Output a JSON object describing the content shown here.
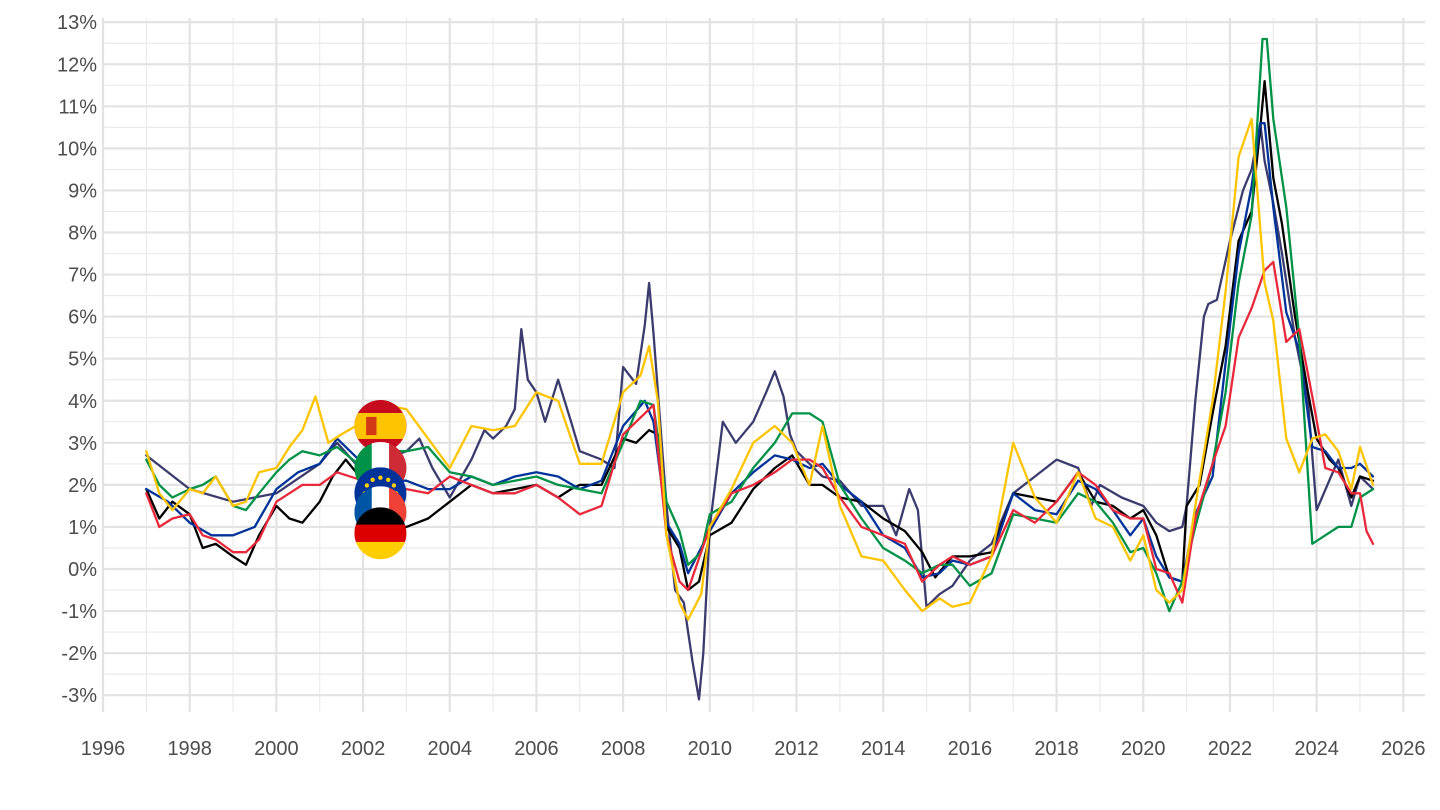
{
  "chart_data": {
    "type": "line",
    "title": "",
    "xlabel": "",
    "ylabel": "",
    "xlim": [
      1996,
      2026.5
    ],
    "ylim": [
      -3.4,
      13.1
    ],
    "x_ticks": [
      1996,
      1998,
      2000,
      2002,
      2004,
      2006,
      2008,
      2010,
      2012,
      2014,
      2016,
      2018,
      2020,
      2022,
      2024,
      2026
    ],
    "x_tick_labels": [
      "1996",
      "1998",
      "2000",
      "2002",
      "2004",
      "2006",
      "2008",
      "2010",
      "2012",
      "2014",
      "2016",
      "2018",
      "2020",
      "2022",
      "2024",
      "2026"
    ],
    "y_ticks": [
      -3,
      -2,
      -1,
      0,
      1,
      2,
      3,
      4,
      5,
      6,
      7,
      8,
      9,
      10,
      11,
      12,
      13
    ],
    "y_tick_labels": [
      "-3%",
      "-2%",
      "-1%",
      "0%",
      "1%",
      "2%",
      "3%",
      "4%",
      "5%",
      "6%",
      "7%",
      "8%",
      "9%",
      "10%",
      "11%",
      "12%",
      "13%"
    ],
    "grid": true,
    "legend": "flag icons stacked near 2002",
    "flag_icons": [
      {
        "icon": "spain-flag-icon",
        "colors": [
          "#c60b1e",
          "#ffc400"
        ]
      },
      {
        "icon": "italy-flag-icon",
        "colors": [
          "#009246",
          "#ffffff",
          "#ce2b37"
        ]
      },
      {
        "icon": "euro-area-flag-icon",
        "colors": [
          "#003399",
          "#ffcc00"
        ]
      },
      {
        "icon": "france-flag-icon",
        "colors": [
          "#0055a4",
          "#ffffff",
          "#ef4135"
        ]
      },
      {
        "icon": "germany-flag-icon",
        "colors": [
          "#000000",
          "#dd0000",
          "#ffce00"
        ]
      }
    ],
    "series": [
      {
        "color": "#3b3b6e",
        "x": [
          1997.0,
          1998.0,
          1999.0,
          2000.0,
          2001.0,
          2001.4,
          2002.0,
          2002.5,
          2003.0,
          2003.3,
          2003.6,
          2004.0,
          2004.5,
          2004.8,
          2005.0,
          2005.3,
          2005.5,
          2005.65,
          2005.8,
          2006.0,
          2006.2,
          2006.5,
          2006.8,
          2007.0,
          2007.5,
          2007.8,
          2008.0,
          2008.3,
          2008.5,
          2008.6,
          2008.7,
          2009.0,
          2009.2,
          2009.4,
          2009.5,
          2009.6,
          2009.75,
          2009.85,
          2010.0,
          2010.3,
          2010.6,
          2011.0,
          2011.3,
          2011.5,
          2011.7,
          2011.85,
          2012.0,
          2012.3,
          2012.6,
          2013.0,
          2013.5,
          2014.0,
          2014.3,
          2014.6,
          2014.8,
          2015.0,
          2015.3,
          2015.6,
          2016.0,
          2016.5,
          2017.0,
          2017.5,
          2018.0,
          2018.5,
          2018.8,
          2019.0,
          2019.5,
          2020.0,
          2020.3,
          2020.6,
          2020.9,
          2021.0,
          2021.2,
          2021.4,
          2021.5,
          2021.7,
          2022.0,
          2022.3,
          2022.5,
          2022.7,
          2022.8,
          2023.0,
          2023.2,
          2023.5,
          2023.8,
          2024.0,
          2024.5,
          2024.8,
          2025.0,
          2025.3
        ],
        "y": [
          2.7,
          1.9,
          1.6,
          1.8,
          2.5,
          3.0,
          2.3,
          2.6,
          2.8,
          3.1,
          2.4,
          1.7,
          2.6,
          3.3,
          3.1,
          3.4,
          3.8,
          5.7,
          4.5,
          4.2,
          3.5,
          4.5,
          3.5,
          2.8,
          2.6,
          2.4,
          4.8,
          4.4,
          5.8,
          6.8,
          5.6,
          1.5,
          -0.5,
          -0.8,
          -1.5,
          -2.2,
          -3.1,
          -2.0,
          1.0,
          3.5,
          3.0,
          3.5,
          4.2,
          4.7,
          4.1,
          3.2,
          2.8,
          2.5,
          2.2,
          2.1,
          1.5,
          1.5,
          0.8,
          1.9,
          1.4,
          -0.9,
          -0.6,
          -0.4,
          0.2,
          0.6,
          1.8,
          2.2,
          2.6,
          2.4,
          1.5,
          2.0,
          1.7,
          1.5,
          1.1,
          0.9,
          1.0,
          1.5,
          4.0,
          6.0,
          6.3,
          6.4,
          7.8,
          9.0,
          9.5,
          10.6,
          9.7,
          8.7,
          7.5,
          5.5,
          4.0,
          1.4,
          2.6,
          1.5,
          2.2,
          1.9
        ]
      },
      {
        "color": "#000000",
        "x": [
          1997.0,
          1997.3,
          1997.6,
          1998.0,
          1998.3,
          1998.6,
          1999.0,
          1999.3,
          1999.6,
          2000.0,
          2000.3,
          2000.6,
          2001.0,
          2001.3,
          2001.6,
          2002.0,
          2002.5,
          2003.0,
          2003.5,
          2004.0,
          2004.5,
          2005.0,
          2005.5,
          2006.0,
          2006.5,
          2006.8,
          2007.0,
          2007.5,
          2008.0,
          2008.3,
          2008.6,
          2008.8,
          2009.0,
          2009.3,
          2009.5,
          2009.75,
          2010.0,
          2010.5,
          2011.0,
          2011.5,
          2011.9,
          2012.3,
          2012.6,
          2013.0,
          2013.5,
          2014.0,
          2014.5,
          2014.9,
          2015.2,
          2015.6,
          2016.0,
          2016.5,
          2017.0,
          2017.5,
          2018.0,
          2018.5,
          2018.9,
          2019.3,
          2019.7,
          2020.0,
          2020.3,
          2020.6,
          2020.9,
          2021.0,
          2021.3,
          2021.6,
          2021.9,
          2022.2,
          2022.5,
          2022.7,
          2022.8,
          2023.0,
          2023.2,
          2023.5,
          2023.8,
          2024.0,
          2024.3,
          2024.5,
          2024.8,
          2025.0,
          2025.3
        ],
        "y": [
          1.9,
          1.2,
          1.6,
          1.3,
          0.5,
          0.6,
          0.3,
          0.1,
          0.8,
          1.5,
          1.2,
          1.1,
          1.6,
          2.2,
          2.6,
          2.1,
          1.0,
          1.0,
          1.2,
          1.6,
          2.0,
          1.8,
          1.9,
          2.0,
          1.7,
          1.9,
          2.0,
          2.0,
          3.1,
          3.0,
          3.3,
          3.2,
          1.0,
          0.5,
          -0.5,
          -0.3,
          0.8,
          1.1,
          1.9,
          2.4,
          2.7,
          2.0,
          2.0,
          1.7,
          1.6,
          1.2,
          0.9,
          0.4,
          -0.2,
          0.3,
          0.3,
          0.4,
          1.8,
          1.7,
          1.6,
          2.3,
          1.6,
          1.5,
          1.2,
          1.4,
          0.8,
          -0.2,
          -0.3,
          1.5,
          2.0,
          3.7,
          5.3,
          7.8,
          8.5,
          10.5,
          11.6,
          9.3,
          8.2,
          6.0,
          4.2,
          3.1,
          2.6,
          2.4,
          1.7,
          2.2,
          2.1
        ]
      },
      {
        "color": "#003399",
        "x": [
          1997.0,
          1997.5,
          1998.0,
          1998.5,
          1999.0,
          1999.5,
          2000.0,
          2000.5,
          2001.0,
          2001.4,
          2002.0,
          2002.5,
          2003.0,
          2003.5,
          2004.0,
          2004.5,
          2005.0,
          2005.5,
          2006.0,
          2006.5,
          2007.0,
          2007.5,
          2008.0,
          2008.5,
          2008.7,
          2009.0,
          2009.3,
          2009.5,
          2010.0,
          2010.5,
          2011.0,
          2011.5,
          2011.9,
          2012.3,
          2012.6,
          2013.0,
          2013.5,
          2014.0,
          2014.5,
          2014.9,
          2015.3,
          2015.6,
          2016.0,
          2016.5,
          2017.0,
          2017.5,
          2018.0,
          2018.5,
          2018.9,
          2019.3,
          2019.7,
          2020.0,
          2020.3,
          2020.6,
          2020.9,
          2021.2,
          2021.6,
          2021.9,
          2022.2,
          2022.5,
          2022.7,
          2022.8,
          2023.0,
          2023.3,
          2023.6,
          2023.9,
          2024.2,
          2024.5,
          2024.8,
          2025.0,
          2025.3
        ],
        "y": [
          1.9,
          1.6,
          1.1,
          0.8,
          0.8,
          1.0,
          1.9,
          2.3,
          2.5,
          3.1,
          2.5,
          2.1,
          2.1,
          1.9,
          1.9,
          2.2,
          2.0,
          2.2,
          2.3,
          2.2,
          1.9,
          2.1,
          3.4,
          4.0,
          3.5,
          1.1,
          0.6,
          -0.1,
          0.9,
          1.8,
          2.3,
          2.7,
          2.6,
          2.4,
          2.5,
          2.0,
          1.6,
          0.8,
          0.5,
          -0.2,
          -0.1,
          0.2,
          0.1,
          0.3,
          1.8,
          1.4,
          1.3,
          2.1,
          1.9,
          1.4,
          0.8,
          1.2,
          0.3,
          -0.2,
          -0.3,
          1.3,
          2.2,
          4.9,
          7.5,
          9.1,
          10.6,
          10.6,
          8.6,
          6.1,
          5.2,
          2.9,
          2.8,
          2.4,
          2.4,
          2.5,
          2.2
        ]
      },
      {
        "color": "#009246",
        "x": [
          1997.0,
          1997.3,
          1997.6,
          1998.0,
          1998.3,
          1998.6,
          1999.0,
          1999.3,
          1999.6,
          2000.0,
          2000.3,
          2000.6,
          2001.0,
          2001.4,
          2002.0,
          2002.5,
          2003.0,
          2003.5,
          2004.0,
          2004.5,
          2005.0,
          2005.5,
          2006.0,
          2006.5,
          2007.0,
          2007.5,
          2008.0,
          2008.4,
          2008.7,
          2009.0,
          2009.3,
          2009.5,
          2009.8,
          2010.0,
          2010.5,
          2011.0,
          2011.5,
          2011.9,
          2012.3,
          2012.6,
          2013.0,
          2013.5,
          2014.0,
          2014.5,
          2014.9,
          2015.3,
          2015.6,
          2016.0,
          2016.5,
          2017.0,
          2017.5,
          2018.0,
          2018.5,
          2018.9,
          2019.3,
          2019.7,
          2020.0,
          2020.3,
          2020.6,
          2020.9,
          2021.2,
          2021.6,
          2021.9,
          2022.2,
          2022.5,
          2022.75,
          2022.85,
          2023.0,
          2023.3,
          2023.6,
          2023.9,
          2024.2,
          2024.5,
          2024.8,
          2025.0,
          2025.3
        ],
        "y": [
          2.6,
          2.0,
          1.7,
          1.9,
          2.0,
          2.2,
          1.5,
          1.4,
          1.8,
          2.3,
          2.6,
          2.8,
          2.7,
          2.9,
          2.4,
          2.8,
          2.8,
          2.9,
          2.3,
          2.2,
          2.0,
          2.1,
          2.2,
          2.0,
          1.9,
          1.8,
          3.0,
          4.0,
          3.9,
          1.6,
          0.9,
          0.1,
          0.4,
          1.3,
          1.6,
          2.4,
          3.0,
          3.7,
          3.7,
          3.5,
          2.0,
          1.2,
          0.5,
          0.2,
          -0.1,
          0.1,
          0.1,
          -0.4,
          -0.1,
          1.3,
          1.2,
          1.1,
          1.8,
          1.6,
          1.1,
          0.4,
          0.5,
          -0.1,
          -1.0,
          -0.3,
          1.0,
          2.5,
          4.2,
          6.8,
          8.4,
          12.6,
          12.6,
          10.7,
          8.6,
          5.5,
          0.6,
          0.8,
          1.0,
          1.0,
          1.7,
          1.9
        ]
      },
      {
        "color": "#e8293b",
        "x": [
          1997.0,
          1997.3,
          1997.6,
          1998.0,
          1998.3,
          1998.6,
          1999.0,
          1999.3,
          1999.6,
          2000.0,
          2000.3,
          2000.6,
          2001.0,
          2001.4,
          2002.0,
          2002.5,
          2003.0,
          2003.5,
          2004.0,
          2004.5,
          2005.0,
          2005.5,
          2006.0,
          2006.5,
          2007.0,
          2007.5,
          2008.0,
          2008.5,
          2008.7,
          2009.0,
          2009.3,
          2009.5,
          2010.0,
          2010.5,
          2011.0,
          2011.5,
          2011.9,
          2012.3,
          2012.6,
          2013.0,
          2013.5,
          2014.0,
          2014.5,
          2014.9,
          2015.3,
          2015.6,
          2016.0,
          2016.5,
          2017.0,
          2017.5,
          2018.0,
          2018.5,
          2018.9,
          2019.3,
          2019.7,
          2020.0,
          2020.3,
          2020.6,
          2020.9,
          2021.2,
          2021.6,
          2021.9,
          2022.2,
          2022.5,
          2022.8,
          2023.0,
          2023.3,
          2023.6,
          2023.9,
          2024.2,
          2024.5,
          2024.8,
          2025.0,
          2025.15,
          2025.3
        ],
        "y": [
          1.8,
          1.0,
          1.2,
          1.3,
          0.8,
          0.7,
          0.4,
          0.4,
          0.7,
          1.6,
          1.8,
          2.0,
          2.0,
          2.3,
          2.1,
          1.9,
          1.9,
          1.8,
          2.2,
          2.0,
          1.8,
          1.8,
          2.0,
          1.7,
          1.3,
          1.5,
          3.2,
          3.7,
          3.9,
          0.8,
          -0.3,
          -0.5,
          1.0,
          1.8,
          2.0,
          2.3,
          2.6,
          2.6,
          2.4,
          1.7,
          1.0,
          0.8,
          0.6,
          -0.3,
          0.1,
          0.3,
          0.1,
          0.3,
          1.4,
          1.1,
          1.6,
          2.3,
          2.0,
          1.4,
          1.2,
          1.2,
          0.0,
          -0.1,
          -0.8,
          1.2,
          2.5,
          3.4,
          5.5,
          6.2,
          7.1,
          7.3,
          5.4,
          5.7,
          4.1,
          2.4,
          2.3,
          1.8,
          1.8,
          0.9,
          0.6
        ]
      },
      {
        "color": "#ffc400",
        "x": [
          1997.0,
          1997.3,
          1997.6,
          1998.0,
          1998.3,
          1998.6,
          1999.0,
          1999.3,
          1999.6,
          2000.0,
          2000.3,
          2000.6,
          2000.9,
          2001.2,
          2001.5,
          2002.0,
          2002.5,
          2003.0,
          2003.5,
          2004.0,
          2004.5,
          2005.0,
          2005.5,
          2006.0,
          2006.5,
          2007.0,
          2007.5,
          2008.0,
          2008.4,
          2008.6,
          2008.8,
          2009.0,
          2009.3,
          2009.5,
          2009.8,
          2010.0,
          2010.5,
          2011.0,
          2011.5,
          2011.9,
          2012.3,
          2012.6,
          2013.0,
          2013.5,
          2014.0,
          2014.5,
          2014.9,
          2015.3,
          2015.6,
          2016.0,
          2016.5,
          2017.0,
          2017.5,
          2018.0,
          2018.5,
          2018.9,
          2019.3,
          2019.7,
          2020.0,
          2020.3,
          2020.6,
          2020.9,
          2021.2,
          2021.6,
          2021.9,
          2022.2,
          2022.5,
          2022.8,
          2023.0,
          2023.3,
          2023.6,
          2023.9,
          2024.2,
          2024.5,
          2024.8,
          2025.0,
          2025.3
        ],
        "y": [
          2.8,
          1.8,
          1.4,
          1.9,
          1.8,
          2.2,
          1.5,
          1.6,
          2.3,
          2.4,
          2.9,
          3.3,
          4.1,
          3.0,
          3.2,
          3.5,
          3.9,
          3.8,
          3.1,
          2.4,
          3.4,
          3.3,
          3.4,
          4.2,
          4.0,
          2.5,
          2.5,
          4.2,
          4.6,
          5.3,
          4.0,
          0.8,
          -0.8,
          -1.2,
          -0.6,
          1.0,
          1.9,
          3.0,
          3.4,
          3.0,
          2.0,
          3.4,
          1.5,
          0.3,
          0.2,
          -0.5,
          -1.0,
          -0.7,
          -0.9,
          -0.8,
          0.3,
          3.0,
          1.7,
          1.1,
          2.3,
          1.2,
          1.0,
          0.2,
          0.8,
          -0.5,
          -0.8,
          -0.5,
          1.5,
          4.0,
          6.6,
          9.8,
          10.7,
          6.8,
          5.9,
          3.1,
          2.3,
          3.1,
          3.2,
          2.8,
          1.9,
          2.9,
          2.0
        ]
      }
    ]
  }
}
